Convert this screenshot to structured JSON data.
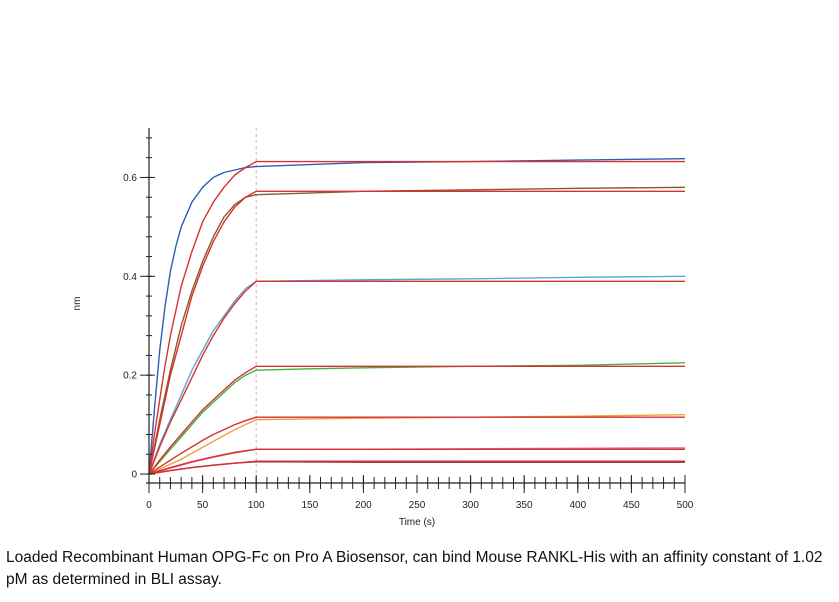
{
  "chart_data": {
    "type": "line",
    "xlabel": "Time (s)",
    "ylabel": "nm",
    "xlim": [
      0,
      500
    ],
    "ylim": [
      -0.01,
      0.7
    ],
    "x_ticks": [
      0,
      50,
      100,
      150,
      200,
      250,
      300,
      350,
      400,
      450,
      500
    ],
    "x_tick_labels": [
      "0",
      "50",
      "100",
      "150",
      "200",
      "250",
      "300",
      "350",
      "400",
      "450",
      "500"
    ],
    "y_ticks": [
      0,
      0.2,
      0.4,
      0.6
    ],
    "y_tick_labels": [
      "0",
      "0.2",
      "0.4",
      "0.6"
    ],
    "marker_line_x": 100,
    "association_end": 100,
    "series": [
      {
        "color": "#2b5fb4",
        "values": [
          [
            0,
            0
          ],
          [
            5,
            0.13
          ],
          [
            10,
            0.25
          ],
          [
            15,
            0.34
          ],
          [
            20,
            0.41
          ],
          [
            25,
            0.46
          ],
          [
            30,
            0.5
          ],
          [
            40,
            0.55
          ],
          [
            50,
            0.58
          ],
          [
            60,
            0.6
          ],
          [
            70,
            0.61
          ],
          [
            80,
            0.615
          ],
          [
            90,
            0.62
          ],
          [
            100,
            0.622
          ],
          [
            200,
            0.63
          ],
          [
            300,
            0.632
          ],
          [
            400,
            0.635
          ],
          [
            500,
            0.638
          ]
        ]
      },
      {
        "color": "#d93030",
        "values": [
          [
            0,
            0
          ],
          [
            5,
            0.08
          ],
          [
            10,
            0.15
          ],
          [
            15,
            0.22
          ],
          [
            20,
            0.28
          ],
          [
            25,
            0.33
          ],
          [
            30,
            0.38
          ],
          [
            40,
            0.45
          ],
          [
            50,
            0.51
          ],
          [
            60,
            0.55
          ],
          [
            70,
            0.58
          ],
          [
            80,
            0.605
          ],
          [
            90,
            0.62
          ],
          [
            100,
            0.632
          ],
          [
            200,
            0.632
          ],
          [
            300,
            0.632
          ],
          [
            400,
            0.632
          ],
          [
            500,
            0.632
          ]
        ]
      },
      {
        "color": "#8b5a2b",
        "values": [
          [
            0,
            0
          ],
          [
            10,
            0.11
          ],
          [
            20,
            0.21
          ],
          [
            30,
            0.3
          ],
          [
            40,
            0.37
          ],
          [
            50,
            0.43
          ],
          [
            60,
            0.48
          ],
          [
            70,
            0.52
          ],
          [
            80,
            0.545
          ],
          [
            90,
            0.56
          ],
          [
            100,
            0.565
          ],
          [
            200,
            0.572
          ],
          [
            300,
            0.575
          ],
          [
            400,
            0.578
          ],
          [
            500,
            0.58
          ]
        ]
      },
      {
        "color": "#d93030",
        "values": [
          [
            0,
            0
          ],
          [
            10,
            0.1
          ],
          [
            20,
            0.2
          ],
          [
            30,
            0.28
          ],
          [
            40,
            0.36
          ],
          [
            50,
            0.42
          ],
          [
            60,
            0.47
          ],
          [
            70,
            0.51
          ],
          [
            80,
            0.54
          ],
          [
            90,
            0.56
          ],
          [
            100,
            0.572
          ],
          [
            200,
            0.572
          ],
          [
            300,
            0.572
          ],
          [
            400,
            0.572
          ],
          [
            500,
            0.572
          ]
        ]
      },
      {
        "color": "#5ba7d0",
        "values": [
          [
            0,
            0
          ],
          [
            10,
            0.06
          ],
          [
            20,
            0.11
          ],
          [
            30,
            0.16
          ],
          [
            40,
            0.21
          ],
          [
            50,
            0.25
          ],
          [
            60,
            0.29
          ],
          [
            70,
            0.32
          ],
          [
            80,
            0.35
          ],
          [
            90,
            0.375
          ],
          [
            100,
            0.39
          ],
          [
            200,
            0.393
          ],
          [
            300,
            0.395
          ],
          [
            400,
            0.398
          ],
          [
            500,
            0.4
          ]
        ]
      },
      {
        "color": "#d93030",
        "values": [
          [
            0,
            0
          ],
          [
            10,
            0.055
          ],
          [
            20,
            0.105
          ],
          [
            30,
            0.15
          ],
          [
            40,
            0.195
          ],
          [
            50,
            0.24
          ],
          [
            60,
            0.28
          ],
          [
            70,
            0.315
          ],
          [
            80,
            0.345
          ],
          [
            90,
            0.37
          ],
          [
            100,
            0.39
          ],
          [
            200,
            0.39
          ],
          [
            300,
            0.39
          ],
          [
            400,
            0.39
          ],
          [
            500,
            0.39
          ]
        ]
      },
      {
        "color": "#3fb53f",
        "values": [
          [
            0,
            0
          ],
          [
            10,
            0.025
          ],
          [
            20,
            0.05
          ],
          [
            30,
            0.075
          ],
          [
            40,
            0.1
          ],
          [
            50,
            0.125
          ],
          [
            60,
            0.145
          ],
          [
            70,
            0.165
          ],
          [
            80,
            0.185
          ],
          [
            90,
            0.2
          ],
          [
            100,
            0.21
          ],
          [
            150,
            0.213
          ],
          [
            200,
            0.215
          ],
          [
            300,
            0.218
          ],
          [
            400,
            0.22
          ],
          [
            500,
            0.225
          ]
        ]
      },
      {
        "color": "#d93030",
        "values": [
          [
            0,
            0
          ],
          [
            10,
            0.028
          ],
          [
            20,
            0.055
          ],
          [
            30,
            0.08
          ],
          [
            40,
            0.105
          ],
          [
            50,
            0.13
          ],
          [
            60,
            0.15
          ],
          [
            70,
            0.17
          ],
          [
            80,
            0.19
          ],
          [
            90,
            0.205
          ],
          [
            100,
            0.218
          ],
          [
            200,
            0.218
          ],
          [
            300,
            0.218
          ],
          [
            400,
            0.218
          ],
          [
            500,
            0.218
          ]
        ]
      },
      {
        "color": "#f0a040",
        "values": [
          [
            0,
            0
          ],
          [
            10,
            0.01
          ],
          [
            20,
            0.02
          ],
          [
            30,
            0.03
          ],
          [
            40,
            0.042
          ],
          [
            50,
            0.054
          ],
          [
            60,
            0.066
          ],
          [
            70,
            0.078
          ],
          [
            80,
            0.09
          ],
          [
            90,
            0.1
          ],
          [
            100,
            0.11
          ],
          [
            200,
            0.113
          ],
          [
            300,
            0.115
          ],
          [
            400,
            0.117
          ],
          [
            500,
            0.12
          ]
        ]
      },
      {
        "color": "#d93030",
        "values": [
          [
            0,
            0
          ],
          [
            10,
            0.014
          ],
          [
            20,
            0.028
          ],
          [
            30,
            0.042
          ],
          [
            40,
            0.055
          ],
          [
            50,
            0.068
          ],
          [
            60,
            0.08
          ],
          [
            70,
            0.09
          ],
          [
            80,
            0.1
          ],
          [
            90,
            0.108
          ],
          [
            100,
            0.115
          ],
          [
            200,
            0.115
          ],
          [
            300,
            0.115
          ],
          [
            400,
            0.115
          ],
          [
            500,
            0.115
          ]
        ]
      },
      {
        "color": "#e060a0",
        "values": [
          [
            0,
            0
          ],
          [
            20,
            0.012
          ],
          [
            40,
            0.024
          ],
          [
            60,
            0.034
          ],
          [
            80,
            0.043
          ],
          [
            100,
            0.05
          ],
          [
            200,
            0.05
          ],
          [
            300,
            0.051
          ],
          [
            400,
            0.052
          ],
          [
            500,
            0.053
          ]
        ]
      },
      {
        "color": "#d93030",
        "values": [
          [
            0,
            0
          ],
          [
            20,
            0.013
          ],
          [
            40,
            0.025
          ],
          [
            60,
            0.035
          ],
          [
            80,
            0.044
          ],
          [
            100,
            0.05
          ],
          [
            200,
            0.05
          ],
          [
            300,
            0.05
          ],
          [
            400,
            0.05
          ],
          [
            500,
            0.05
          ]
        ]
      },
      {
        "color": "#8b2a2a",
        "values": [
          [
            0,
            0
          ],
          [
            20,
            0.007
          ],
          [
            40,
            0.013
          ],
          [
            60,
            0.018
          ],
          [
            80,
            0.022
          ],
          [
            100,
            0.025
          ],
          [
            200,
            0.024
          ],
          [
            300,
            0.024
          ],
          [
            400,
            0.024
          ],
          [
            500,
            0.024
          ]
        ]
      },
      {
        "color": "#d93030",
        "values": [
          [
            0,
            0
          ],
          [
            20,
            0.007
          ],
          [
            40,
            0.013
          ],
          [
            60,
            0.018
          ],
          [
            80,
            0.022
          ],
          [
            100,
            0.026
          ],
          [
            200,
            0.026
          ],
          [
            300,
            0.026
          ],
          [
            400,
            0.026
          ],
          [
            500,
            0.026
          ]
        ]
      }
    ]
  },
  "caption": "Loaded Recombinant Human OPG-Fc on Pro A Biosensor, can bind Mouse RANKL-His with an affinity constant of 1.02 pM as determined in BLI assay."
}
